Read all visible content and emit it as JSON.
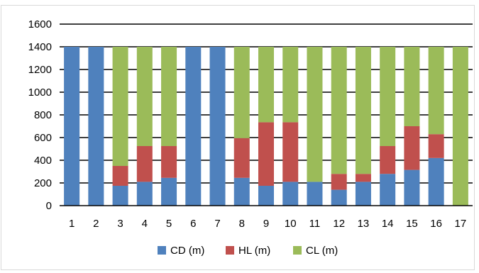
{
  "chart_data": {
    "type": "bar",
    "stacked": true,
    "title": "",
    "xlabel": "",
    "ylabel": "",
    "ylim": [
      0,
      1600
    ],
    "yticks": [
      0,
      200,
      400,
      600,
      800,
      1000,
      1200,
      1400,
      1600
    ],
    "grid": "horizontal",
    "legend": "bottom",
    "categories": [
      "1",
      "2",
      "3",
      "4",
      "5",
      "6",
      "7",
      "8",
      "9",
      "10",
      "11",
      "12",
      "13",
      "14",
      "15",
      "16",
      "17"
    ],
    "series": [
      {
        "name": "CD (m)",
        "color": "#4f81bd",
        "values": [
          1400,
          1400,
          175,
          210,
          245,
          1400,
          1400,
          245,
          175,
          210,
          210,
          140,
          210,
          280,
          315,
          420,
          0
        ]
      },
      {
        "name": "HL (m)",
        "color": "#c0504d",
        "values": [
          0,
          0,
          175,
          315,
          280,
          0,
          0,
          350,
          560,
          525,
          0,
          140,
          70,
          245,
          385,
          210,
          0
        ]
      },
      {
        "name": "CL (m)",
        "color": "#9bbb59",
        "values": [
          0,
          0,
          1050,
          875,
          875,
          0,
          0,
          805,
          665,
          665,
          1190,
          1120,
          1120,
          875,
          700,
          770,
          1400
        ]
      }
    ]
  }
}
